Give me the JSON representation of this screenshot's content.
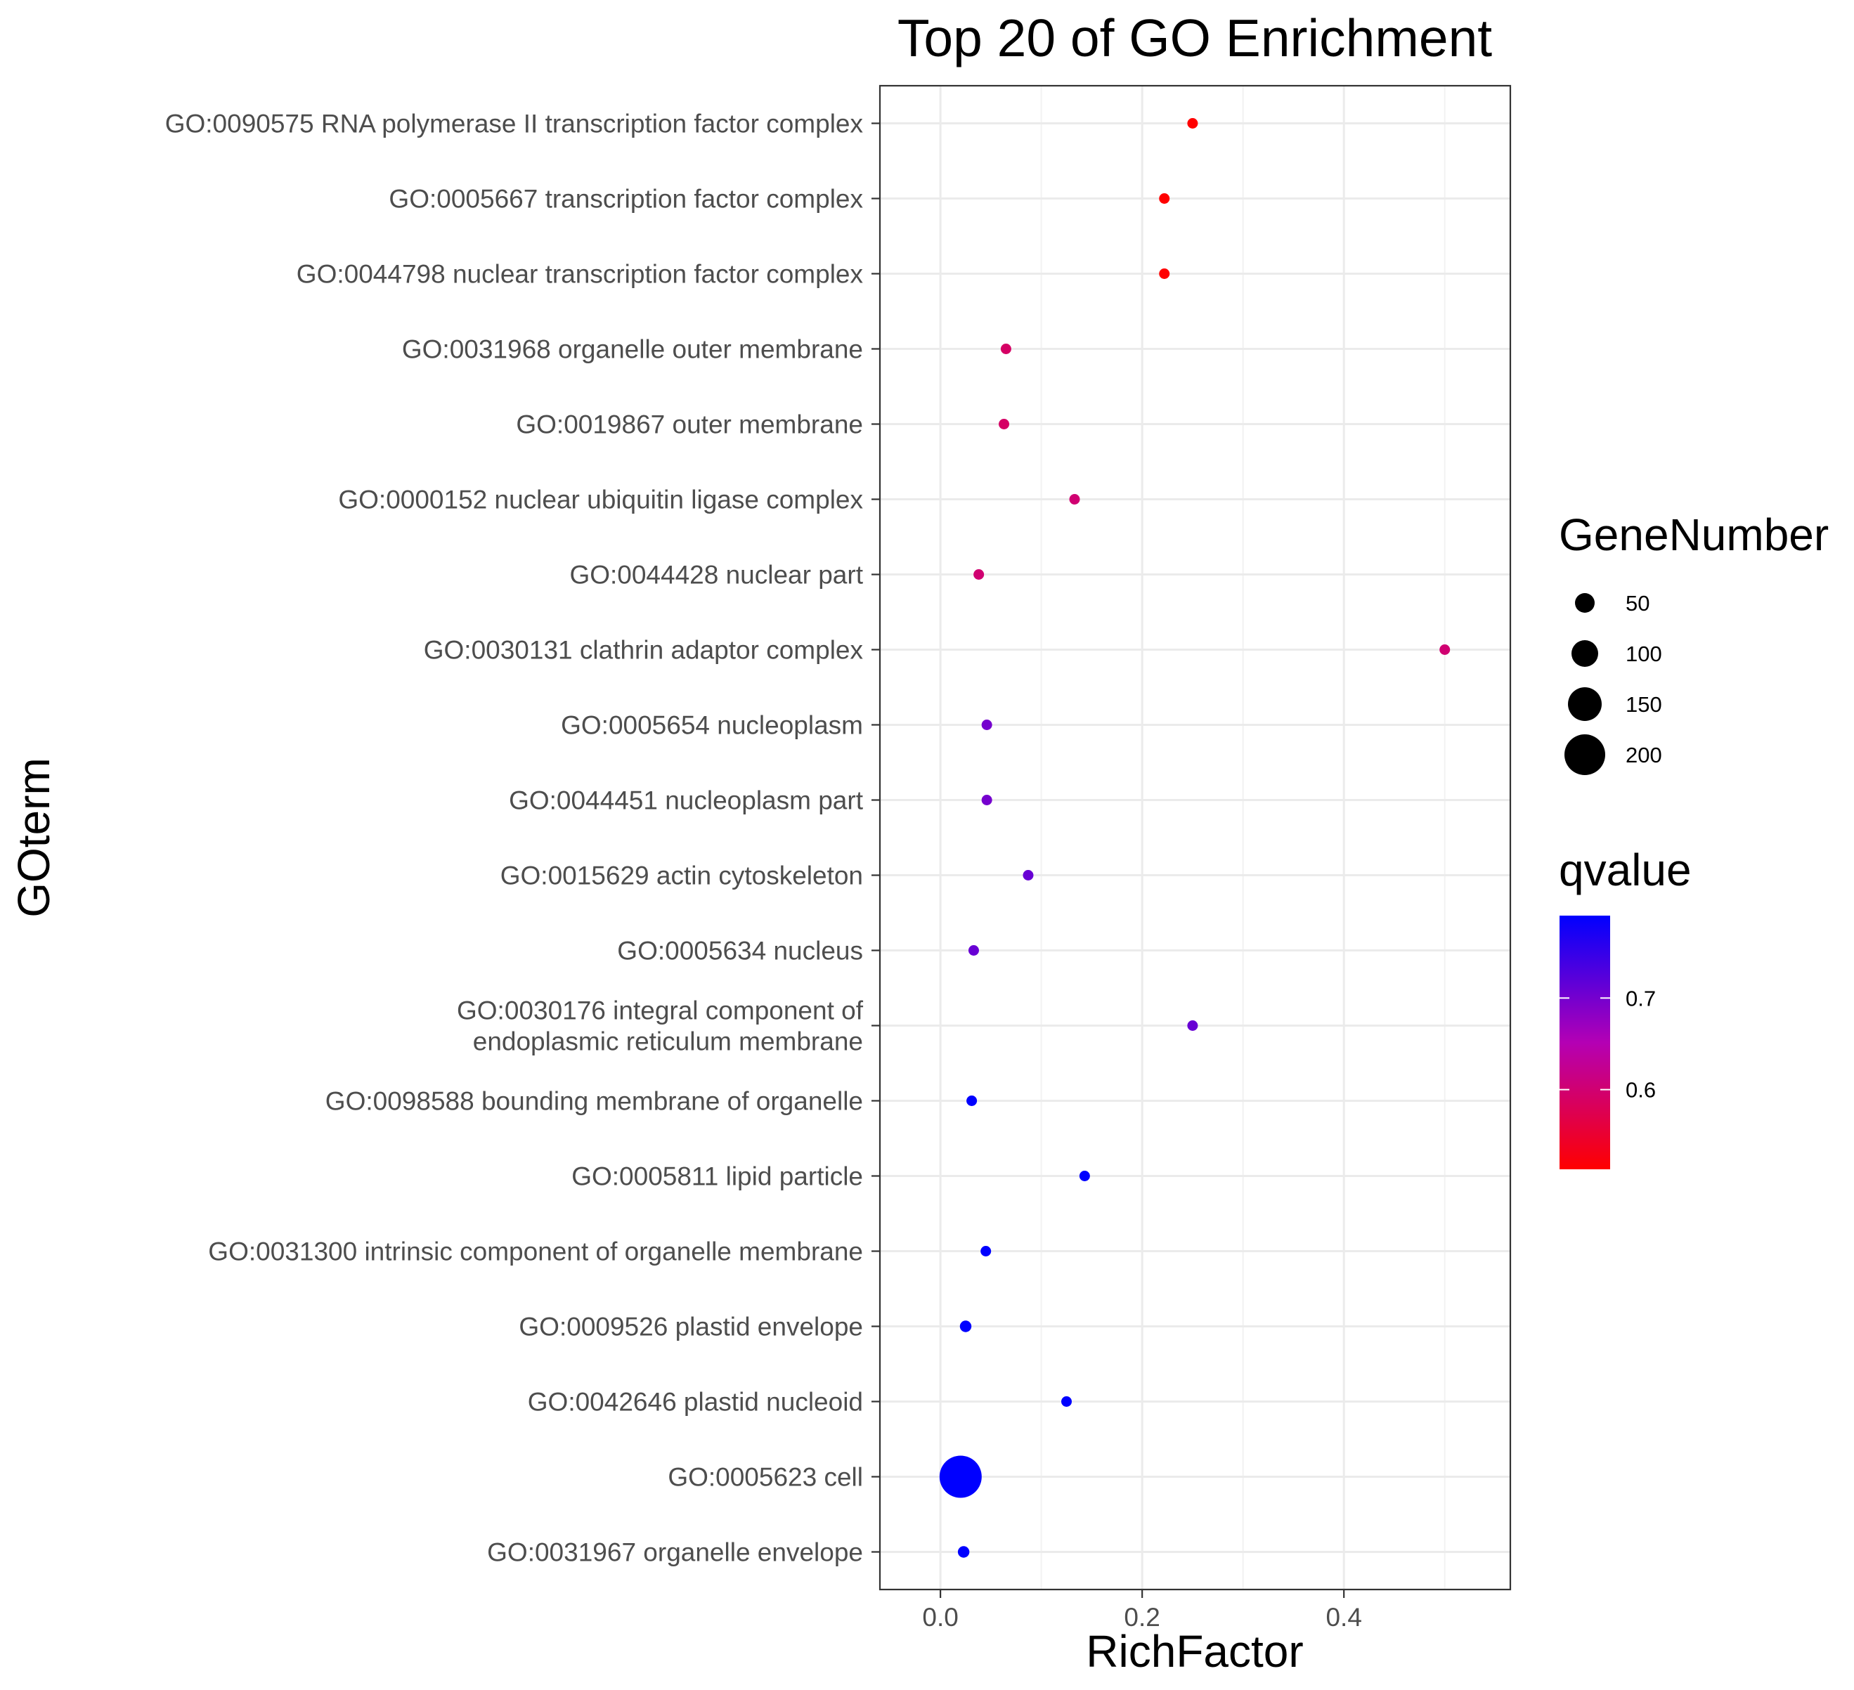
{
  "chart_data": {
    "type": "scatter",
    "title": "Top 20 of GO Enrichment",
    "xlabel": "RichFactor",
    "ylabel": "GOterm",
    "xlim": [
      -0.06,
      0.565
    ],
    "x_ticks": [
      0.0,
      0.2,
      0.4
    ],
    "x_tick_labels": [
      "0.0",
      "0.2",
      "0.4"
    ],
    "grid": true,
    "points": [
      {
        "term": "GO:0090575 RNA polymerase II transcription factor complex",
        "rich_factor": 0.25,
        "gene_number": 6,
        "qvalue": 0.513
      },
      {
        "term": "GO:0005667 transcription factor complex",
        "rich_factor": 0.222,
        "gene_number": 6,
        "qvalue": 0.513
      },
      {
        "term": "GO:0044798 nuclear transcription factor complex",
        "rich_factor": 0.222,
        "gene_number": 6,
        "qvalue": 0.513
      },
      {
        "term": "GO:0031968 organelle outer membrane",
        "rich_factor": 0.065,
        "gene_number": 9,
        "qvalue": 0.59
      },
      {
        "term": "GO:0019867 outer membrane",
        "rich_factor": 0.063,
        "gene_number": 9,
        "qvalue": 0.59
      },
      {
        "term": "GO:0000152 nuclear ubiquitin ligase complex",
        "rich_factor": 0.133,
        "gene_number": 6,
        "qvalue": 0.6
      },
      {
        "term": "GO:0044428 nuclear part",
        "rich_factor": 0.038,
        "gene_number": 13,
        "qvalue": 0.6
      },
      {
        "term": "GO:0030131 clathrin adaptor complex",
        "rich_factor": 0.5,
        "gene_number": 3,
        "qvalue": 0.6
      },
      {
        "term": "GO:0005654 nucleoplasm",
        "rich_factor": 0.046,
        "gene_number": 10,
        "qvalue": 0.7
      },
      {
        "term": "GO:0044451 nucleoplasm part",
        "rich_factor": 0.046,
        "gene_number": 10,
        "qvalue": 0.7
      },
      {
        "term": "GO:0015629 actin cytoskeleton",
        "rich_factor": 0.087,
        "gene_number": 6,
        "qvalue": 0.71
      },
      {
        "term": "GO:0005634 nucleus",
        "rich_factor": 0.033,
        "gene_number": 14,
        "qvalue": 0.71
      },
      {
        "term": "GO:0030176 integral component of endoplasmic reticulum membrane",
        "rich_factor": 0.25,
        "gene_number": 3,
        "qvalue": 0.71
      },
      {
        "term": "GO:0098588 bounding membrane of organelle",
        "rich_factor": 0.031,
        "gene_number": 13,
        "qvalue": 0.79
      },
      {
        "term": "GO:0005811 lipid particle",
        "rich_factor": 0.143,
        "gene_number": 3,
        "qvalue": 0.79
      },
      {
        "term": "GO:0031300 intrinsic component of organelle membrane",
        "rich_factor": 0.045,
        "gene_number": 5,
        "qvalue": 0.79
      },
      {
        "term": "GO:0009526 plastid envelope",
        "rich_factor": 0.025,
        "gene_number": 18,
        "qvalue": 0.79
      },
      {
        "term": "GO:0042646 plastid nucleoid",
        "rich_factor": 0.125,
        "gene_number": 3,
        "qvalue": 0.79
      },
      {
        "term": "GO:0005623 cell",
        "rich_factor": 0.02,
        "gene_number": 240,
        "qvalue": 0.79
      },
      {
        "term": "GO:0031967 organelle envelope",
        "rich_factor": 0.023,
        "gene_number": 18,
        "qvalue": 0.79
      }
    ],
    "size_legend": {
      "title": "GeneNumber",
      "values": [
        50,
        100,
        150,
        200
      ],
      "labels": [
        "50",
        "100",
        "150",
        "200"
      ]
    },
    "color_legend": {
      "title": "qvalue",
      "range": [
        0.513,
        0.79
      ],
      "ticks": [
        0.6,
        0.7
      ],
      "tick_labels": [
        "0.6",
        "0.7"
      ],
      "low_color": "#ff0000",
      "high_color": "#0000ff",
      "mid_color": "#b400b4"
    },
    "legend_position": "right"
  }
}
